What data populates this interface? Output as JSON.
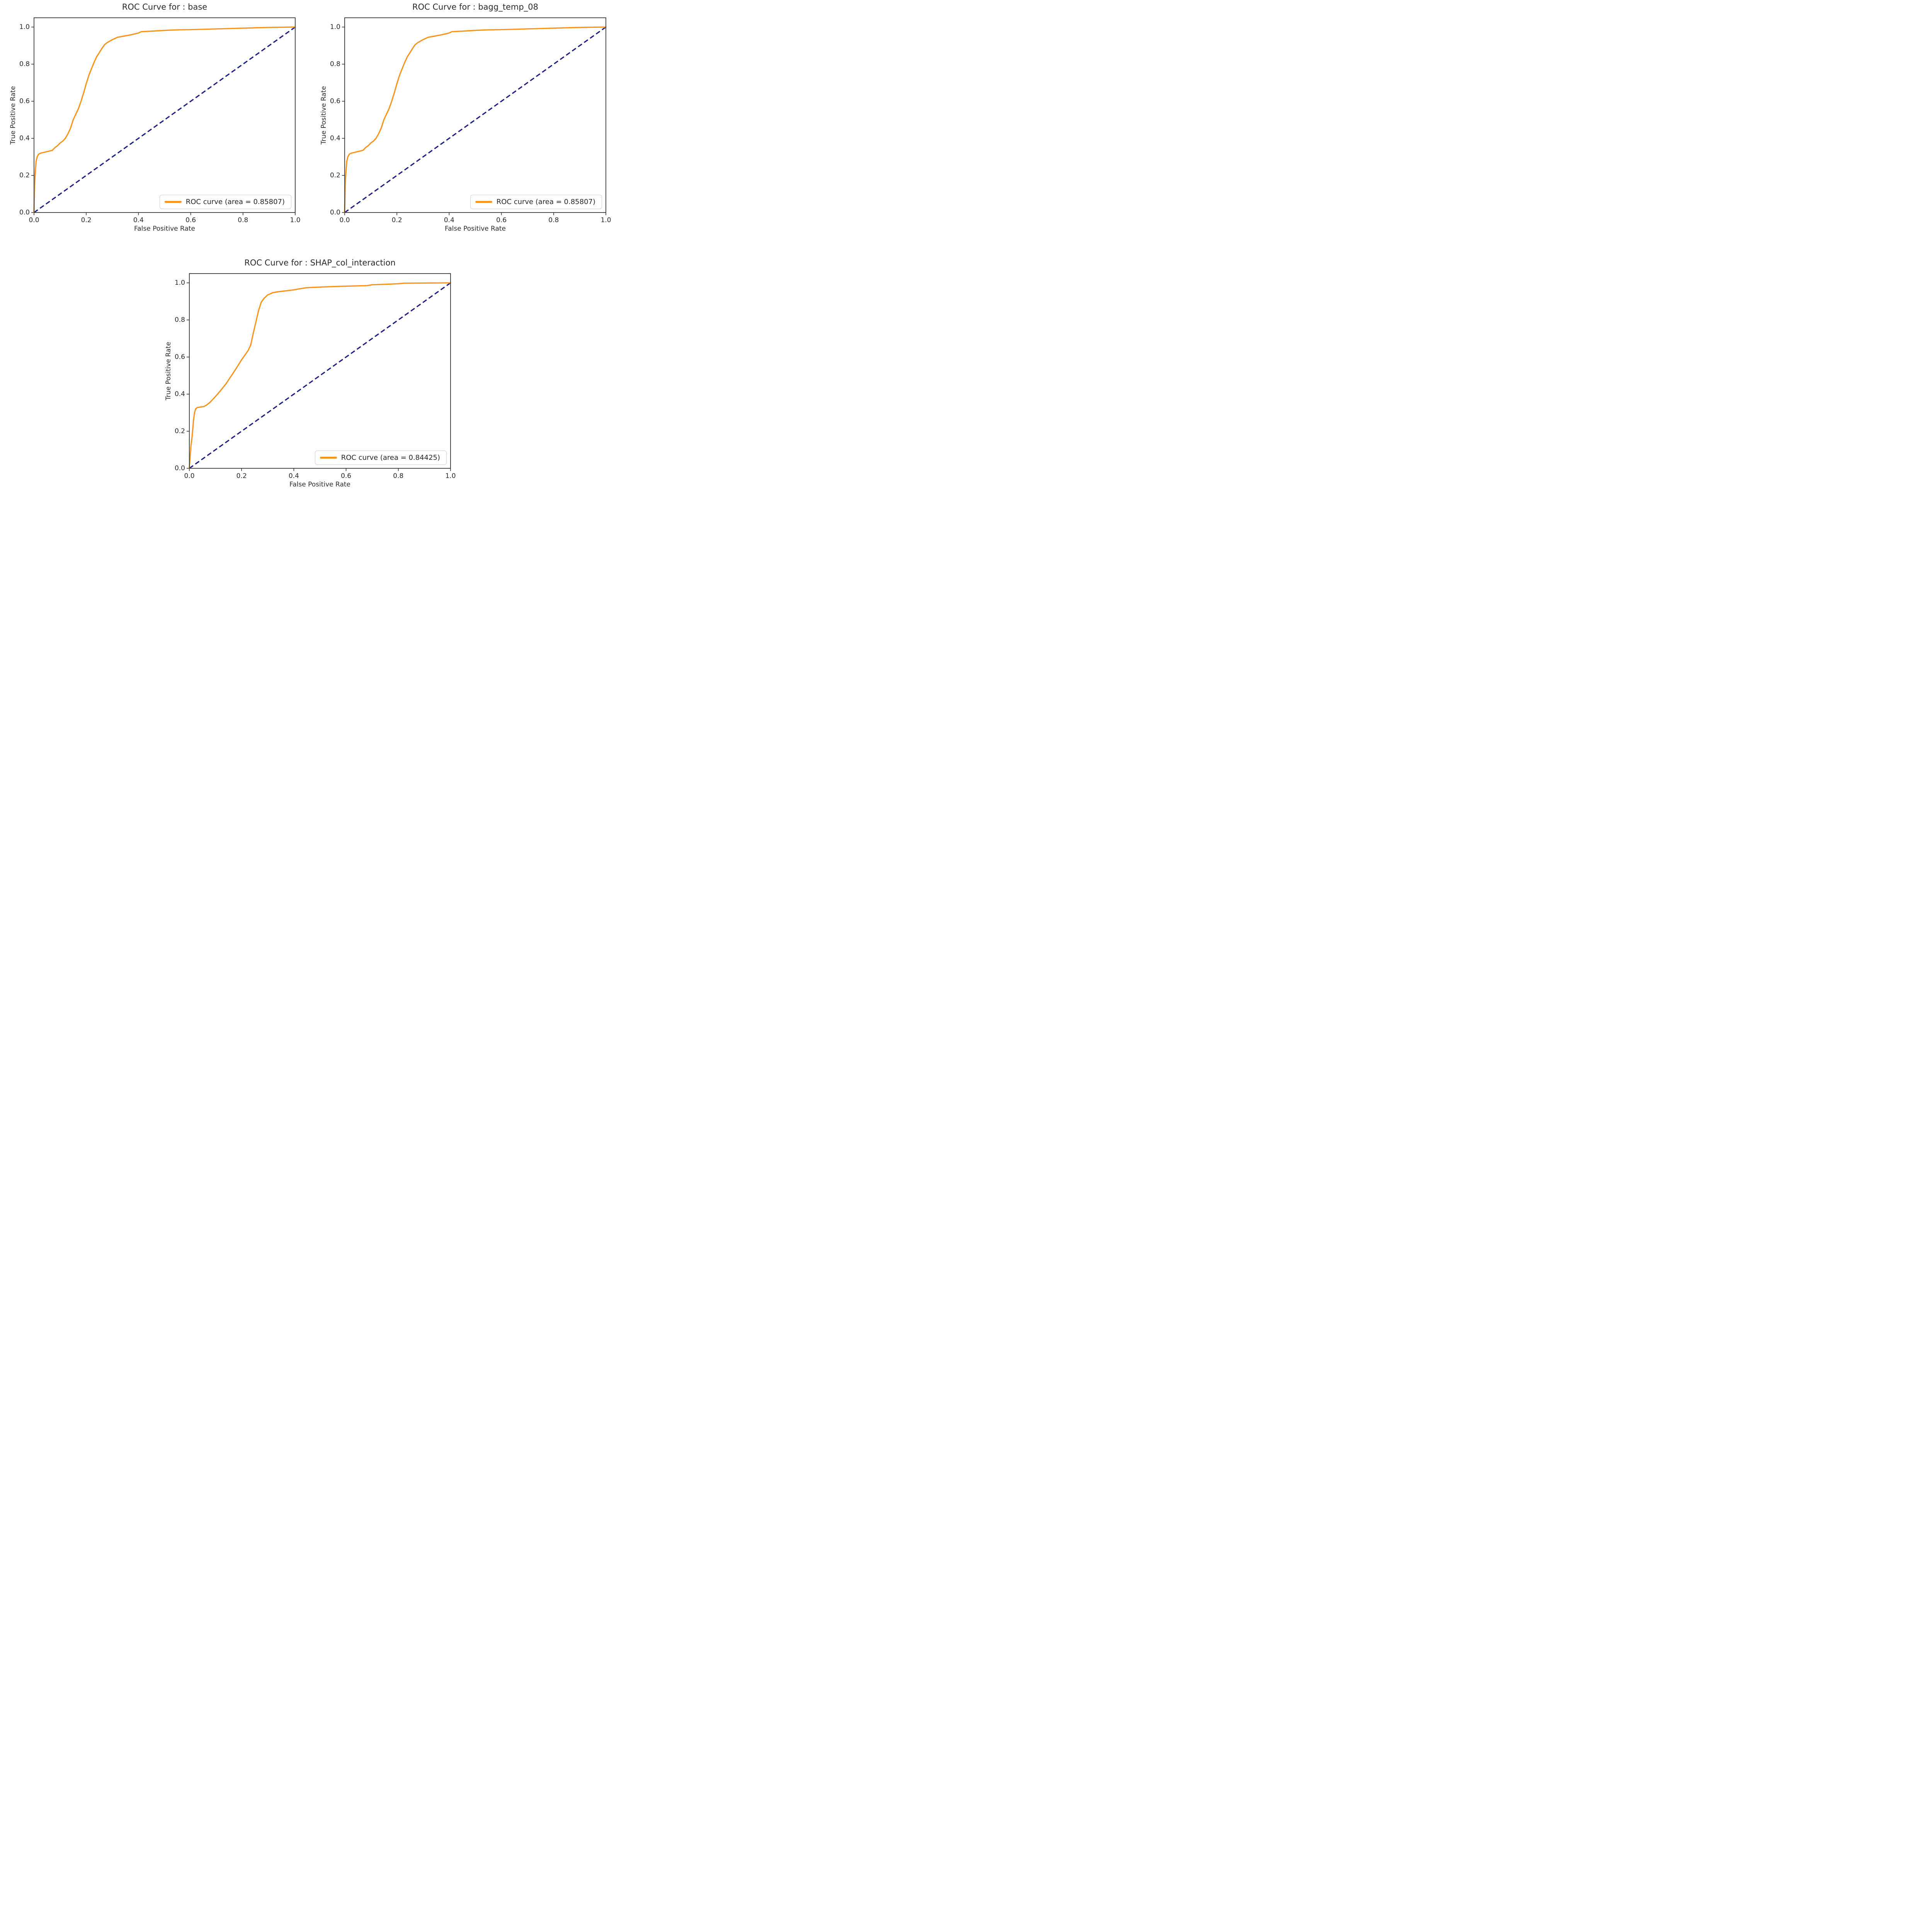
{
  "figure": {
    "background_color": "#ffffff",
    "text_color": "#262626",
    "frame_color": "#333333"
  },
  "chart_data": [
    {
      "type": "line",
      "title": "ROC Curve for : base",
      "xlabel": "False Positive Rate",
      "ylabel": "True Positive Rate",
      "auc": 0.85807,
      "legend": {
        "label": "ROC curve (area = 0.85807)",
        "position": "lower right"
      },
      "xlim": [
        0.0,
        1.0
      ],
      "ylim": [
        0.0,
        1.05
      ],
      "grid": false,
      "x_tick_values": [
        0.0,
        0.2,
        0.4,
        0.6,
        0.8,
        1.0
      ],
      "x_tick_labels": [
        "0.0",
        "0.2",
        "0.4",
        "0.6",
        "0.8",
        "1.0"
      ],
      "y_tick_values": [
        0.0,
        0.2,
        0.4,
        0.6,
        0.8,
        1.0
      ],
      "y_tick_labels": [
        "0.0",
        "0.2",
        "0.4",
        "0.6",
        "0.8",
        "1.0"
      ],
      "colors": {
        "roc_line": "#f7941e",
        "chance_line": "#1b1b85"
      },
      "series": [
        {
          "name": "ROC curve",
          "style": "solid",
          "x": [
            0,
            0.002,
            0.005,
            0.008,
            0.012,
            0.018,
            0.025,
            0.04,
            0.055,
            0.07,
            0.08,
            0.09,
            0.1,
            0.11,
            0.12,
            0.13,
            0.14,
            0.15,
            0.16,
            0.17,
            0.18,
            0.19,
            0.2,
            0.21,
            0.22,
            0.23,
            0.24,
            0.25,
            0.26,
            0.27,
            0.28,
            0.3,
            0.32,
            0.34,
            0.37,
            0.4,
            0.41,
            0.45,
            0.5,
            0.55,
            0.6,
            0.65,
            0.7,
            0.75,
            0.8,
            0.85,
            0.9,
            0.95,
            1.0
          ],
          "y": [
            0,
            0.155,
            0.22,
            0.275,
            0.3,
            0.315,
            0.32,
            0.325,
            0.33,
            0.335,
            0.35,
            0.36,
            0.375,
            0.385,
            0.4,
            0.425,
            0.455,
            0.5,
            0.53,
            0.56,
            0.6,
            0.645,
            0.695,
            0.74,
            0.775,
            0.81,
            0.84,
            0.862,
            0.885,
            0.905,
            0.916,
            0.932,
            0.945,
            0.95,
            0.958,
            0.968,
            0.975,
            0.978,
            0.982,
            0.985,
            0.986,
            0.988,
            0.99,
            0.992,
            0.994,
            0.996,
            0.998,
            0.999,
            1.0
          ]
        },
        {
          "name": "chance diagonal",
          "style": "dashed",
          "x": [
            0,
            1
          ],
          "y": [
            0,
            1
          ]
        }
      ]
    },
    {
      "type": "line",
      "title": "ROC Curve for : bagg_temp_08",
      "xlabel": "False Positive Rate",
      "ylabel": "True Positive Rate",
      "auc": 0.85807,
      "legend": {
        "label": "ROC curve (area = 0.85807)",
        "position": "lower right"
      },
      "xlim": [
        0.0,
        1.0
      ],
      "ylim": [
        0.0,
        1.05
      ],
      "grid": false,
      "x_tick_values": [
        0.0,
        0.2,
        0.4,
        0.6,
        0.8,
        1.0
      ],
      "x_tick_labels": [
        "0.0",
        "0.2",
        "0.4",
        "0.6",
        "0.8",
        "1.0"
      ],
      "y_tick_values": [
        0.0,
        0.2,
        0.4,
        0.6,
        0.8,
        1.0
      ],
      "y_tick_labels": [
        "0.0",
        "0.2",
        "0.4",
        "0.6",
        "0.8",
        "1.0"
      ],
      "colors": {
        "roc_line": "#f7941e",
        "chance_line": "#1b1b85"
      },
      "series": [
        {
          "name": "ROC curve",
          "style": "solid",
          "x": [
            0,
            0.002,
            0.005,
            0.008,
            0.012,
            0.018,
            0.025,
            0.04,
            0.055,
            0.07,
            0.08,
            0.09,
            0.1,
            0.11,
            0.12,
            0.13,
            0.14,
            0.15,
            0.16,
            0.17,
            0.18,
            0.19,
            0.2,
            0.21,
            0.22,
            0.23,
            0.24,
            0.25,
            0.26,
            0.27,
            0.28,
            0.3,
            0.32,
            0.34,
            0.37,
            0.4,
            0.41,
            0.45,
            0.5,
            0.55,
            0.6,
            0.65,
            0.7,
            0.75,
            0.8,
            0.85,
            0.9,
            0.95,
            1.0
          ],
          "y": [
            0,
            0.155,
            0.22,
            0.275,
            0.3,
            0.315,
            0.32,
            0.325,
            0.33,
            0.335,
            0.35,
            0.36,
            0.375,
            0.385,
            0.4,
            0.425,
            0.455,
            0.5,
            0.53,
            0.56,
            0.6,
            0.645,
            0.695,
            0.74,
            0.775,
            0.81,
            0.84,
            0.862,
            0.885,
            0.905,
            0.916,
            0.932,
            0.945,
            0.95,
            0.958,
            0.968,
            0.975,
            0.978,
            0.982,
            0.985,
            0.986,
            0.988,
            0.99,
            0.992,
            0.994,
            0.996,
            0.998,
            0.999,
            1.0
          ]
        },
        {
          "name": "chance diagonal",
          "style": "dashed",
          "x": [
            0,
            1
          ],
          "y": [
            0,
            1
          ]
        }
      ]
    },
    {
      "type": "line",
      "title": "ROC Curve for : SHAP_col_interaction",
      "xlabel": "False Positive Rate",
      "ylabel": "True Positive Rate",
      "auc": 0.84425,
      "legend": {
        "label": "ROC curve (area = 0.84425)",
        "position": "lower right"
      },
      "xlim": [
        0.0,
        1.0
      ],
      "ylim": [
        0.0,
        1.05
      ],
      "grid": false,
      "x_tick_values": [
        0.0,
        0.2,
        0.4,
        0.6,
        0.8,
        1.0
      ],
      "x_tick_labels": [
        "0.0",
        "0.2",
        "0.4",
        "0.6",
        "0.8",
        "1.0"
      ],
      "y_tick_values": [
        0.0,
        0.2,
        0.4,
        0.6,
        0.8,
        1.0
      ],
      "y_tick_labels": [
        "0.0",
        "0.2",
        "0.4",
        "0.6",
        "0.8",
        "1.0"
      ],
      "colors": {
        "roc_line": "#f7941e",
        "chance_line": "#1b1b85"
      },
      "series": [
        {
          "name": "ROC curve",
          "style": "solid",
          "x": [
            0,
            0.003,
            0.006,
            0.01,
            0.013,
            0.016,
            0.02,
            0.024,
            0.03,
            0.04,
            0.055,
            0.065,
            0.08,
            0.1,
            0.12,
            0.14,
            0.16,
            0.18,
            0.2,
            0.215,
            0.225,
            0.235,
            0.245,
            0.255,
            0.265,
            0.275,
            0.285,
            0.3,
            0.32,
            0.34,
            0.37,
            0.4,
            0.43,
            0.45,
            0.5,
            0.55,
            0.6,
            0.65,
            0.68,
            0.7,
            0.75,
            0.8,
            0.82,
            0.9,
            1.0
          ],
          "y": [
            0,
            0.06,
            0.12,
            0.165,
            0.21,
            0.26,
            0.3,
            0.32,
            0.327,
            0.33,
            0.333,
            0.34,
            0.357,
            0.387,
            0.42,
            0.455,
            0.497,
            0.54,
            0.585,
            0.615,
            0.635,
            0.665,
            0.73,
            0.79,
            0.85,
            0.895,
            0.915,
            0.935,
            0.947,
            0.952,
            0.957,
            0.962,
            0.97,
            0.974,
            0.977,
            0.98,
            0.982,
            0.984,
            0.985,
            0.99,
            0.992,
            0.995,
            0.998,
            0.999,
            1.0
          ]
        },
        {
          "name": "chance diagonal",
          "style": "dashed",
          "x": [
            0,
            1
          ],
          "y": [
            0,
            1
          ]
        }
      ]
    }
  ]
}
